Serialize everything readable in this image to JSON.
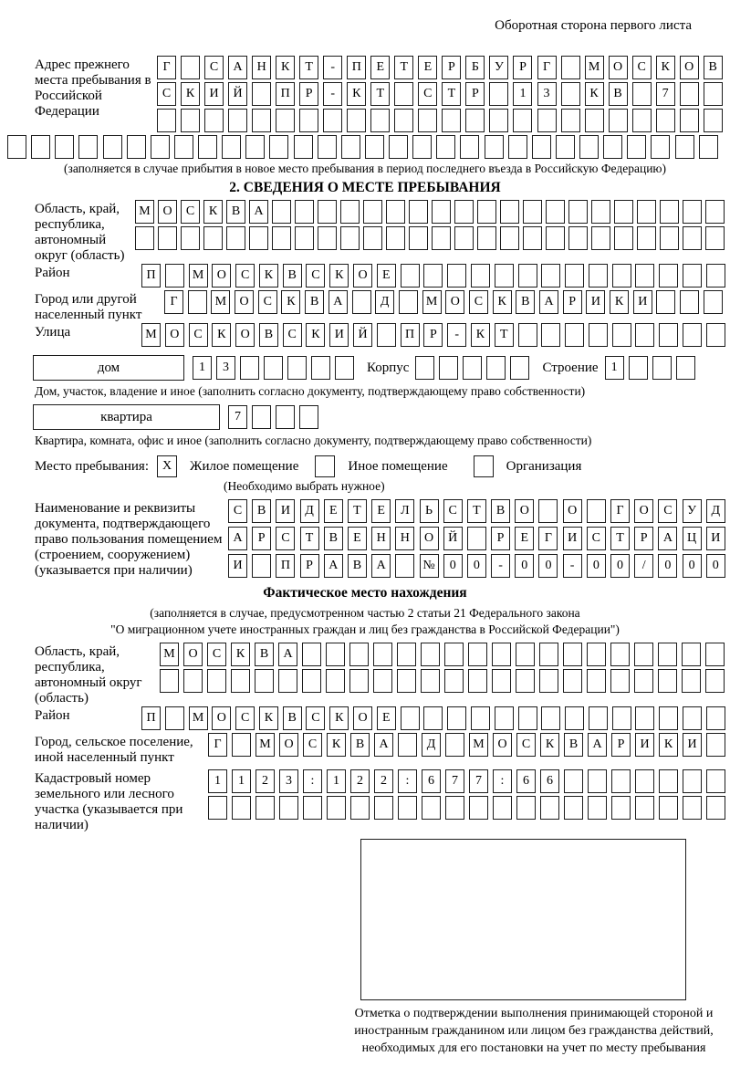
{
  "page": {
    "header_note": "Оборотная сторона первого листа"
  },
  "prev_address": {
    "label": "Адрес прежнего места пребывания в Российской Федерации",
    "rows": [
      {
        "text": "Г САНКТ-ПЕТЕРБУРГ МОСКОВ",
        "len": 24
      },
      {
        "text": "СКИЙ ПР-КТ СТР 13 КВ 7",
        "len": 24
      },
      {
        "text": "",
        "len": 24
      }
    ],
    "overflow_row": {
      "text": "",
      "len": 30
    },
    "note": "(заполняется в случае прибытия в новое место пребывания в период последнего въезда в Российскую Федерацию)"
  },
  "section2": {
    "title": "2. СВЕДЕНИЯ О МЕСТЕ ПРЕБЫВАНИЯ",
    "oblast": {
      "label": "Область, край, республика, автономный округ (область)",
      "rows": [
        {
          "text": "МОСКВА",
          "len": 26
        },
        {
          "text": "",
          "len": 26
        }
      ]
    },
    "raion": {
      "label": "Район",
      "row": {
        "text": "П МОСКВСКОЕ",
        "len": 25
      }
    },
    "gorod": {
      "label": "Город или другой населенный пункт",
      "row": {
        "text": "Г МОСКВА Д МОСКВАРИКИ",
        "len": 24
      }
    },
    "ulitsa": {
      "label": "Улица",
      "row": {
        "text": "МОСКОВСКИЙ ПР-КТ",
        "len": 25
      }
    },
    "dom": {
      "box_label": "дом",
      "row": {
        "text": "13",
        "len": 7
      },
      "korpus_label": "Корпус",
      "korpus_row": {
        "text": "",
        "len": 5
      },
      "stroenie_label": "Строение",
      "stroenie_row": {
        "text": "1",
        "len": 4
      },
      "note": "Дом, участок, владение и иное (заполнить согласно документу, подтверждающему право собственности)"
    },
    "kvartira": {
      "box_label": "квартира",
      "row": {
        "text": "7",
        "len": 4
      },
      "note": "Квартира, комната, офис и иное (заполнить согласно документу, подтверждающему право собственности)"
    },
    "mesto": {
      "label": "Место пребывания:",
      "options": [
        {
          "label": "Жилое помещение",
          "value": "X"
        },
        {
          "label": "Иное помещение",
          "value": ""
        },
        {
          "label": "Организация",
          "value": ""
        }
      ],
      "note": "(Необходимо выбрать нужное)"
    },
    "document": {
      "label": "Наименование и реквизиты документа, подтверждающего право пользования помещением (строением, сооружением) (указывается при наличии)",
      "rows": [
        {
          "text": "СВИДЕТЕЛЬСТВО О ГОСУД",
          "len": 21
        },
        {
          "text": "АРСТВЕННОЙ РЕГИСТРАЦИ",
          "len": 21
        },
        {
          "text": "И ПРАВА №00-00-00/000",
          "len": 21
        }
      ]
    }
  },
  "actual_location": {
    "title": "Фактическое место нахождения",
    "note_line1": "(заполняется в случае, предусмотренном частью 2 статьи 21 Федерального закона",
    "note_line2": "\"О миграционном учете иностранных граждан и лиц без гражданства в Российской Федерации\")",
    "oblast": {
      "label": "Область, край, республика, автономный округ (область)",
      "rows": [
        {
          "text": "МОСКВА",
          "len": 24
        },
        {
          "text": "",
          "len": 24
        }
      ]
    },
    "raion": {
      "label": "Район",
      "row": {
        "text": "П МОСКВСКОЕ",
        "len": 25
      }
    },
    "gorod": {
      "label": "Город, сельское поселение, иной населенный пункт",
      "row": {
        "text": "Г МОСКВА Д МОСКВАРИКИ",
        "len": 22
      }
    },
    "kadastr": {
      "label": "Кадастровый номер земельного или лесного участка (указывается при наличии)",
      "rows": [
        {
          "text": "1123:122:677:66",
          "len": 22
        },
        {
          "text": "",
          "len": 22
        }
      ]
    },
    "stamp_caption": "Отметка о подтверждении выполнения принимающей стороной и иностранным гражданином или лицом без гражданства действий, необходимых для его постановки на учет по месту пребывания"
  }
}
